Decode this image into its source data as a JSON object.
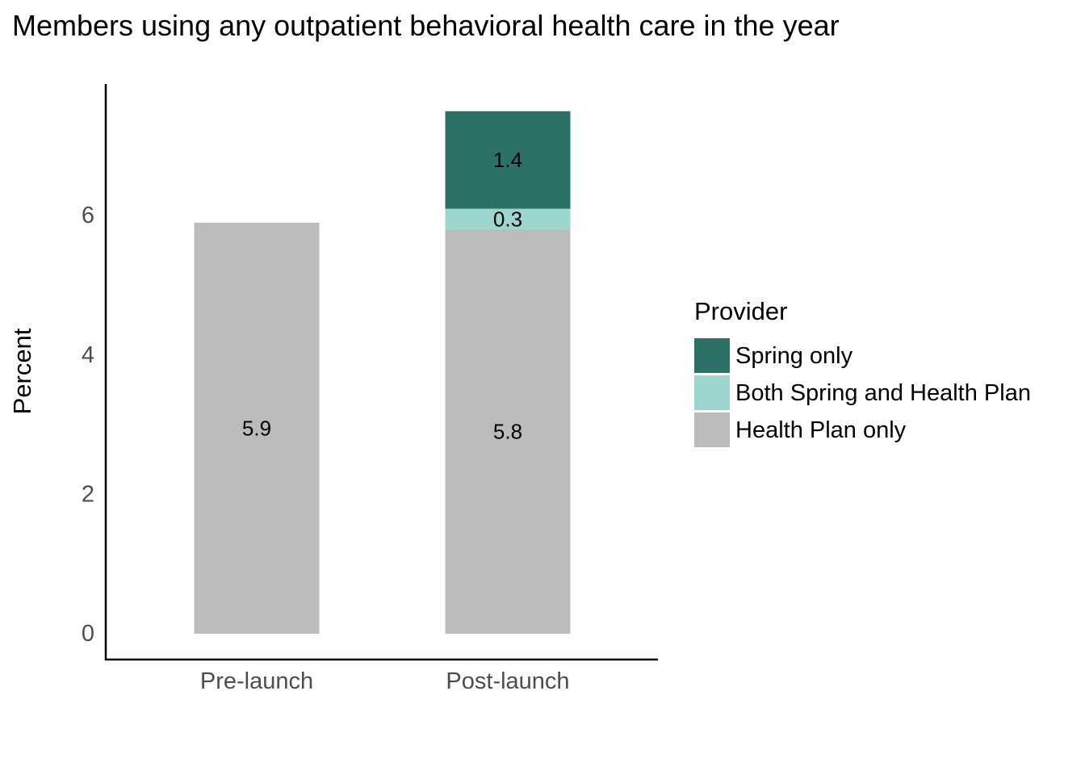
{
  "chart_data": {
    "type": "bar",
    "stacked": true,
    "title": "Members using any outpatient behavioral health care in the year",
    "xlabel": "",
    "ylabel": "Percent",
    "categories": [
      "Pre-launch",
      "Post-launch"
    ],
    "ylim": [
      0,
      7.5
    ],
    "yticks": [
      "0",
      "2",
      "4",
      "6"
    ],
    "grid": false,
    "legend": {
      "title": "Provider",
      "position": "right"
    },
    "series": [
      {
        "name": "Health Plan only",
        "color": "#bbbbbb",
        "values": [
          5.9,
          5.8
        ],
        "labels": [
          "5.9",
          "5.8"
        ]
      },
      {
        "name": "Both Spring and Health Plan",
        "color": "#9dd6cf",
        "values": [
          0,
          0.3
        ],
        "labels": [
          "",
          "0.3"
        ]
      },
      {
        "name": "Spring only",
        "color": "#2c7168",
        "values": [
          0,
          1.4
        ],
        "labels": [
          "",
          "1.4"
        ]
      }
    ],
    "legend_order": [
      "Spring only",
      "Both Spring and Health Plan",
      "Health Plan only"
    ]
  }
}
